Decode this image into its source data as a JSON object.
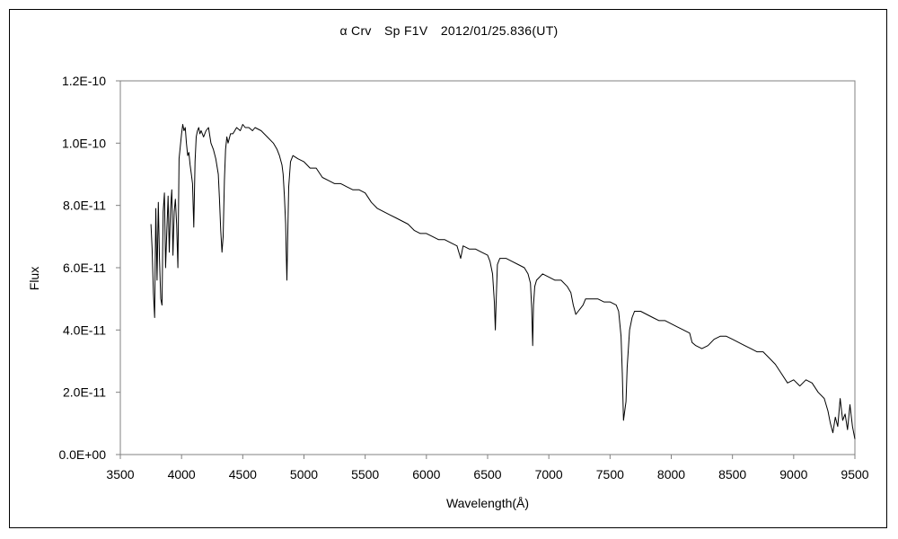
{
  "chart_data": {
    "type": "line",
    "title": "α Crv　Sp F1V　2012/01/25.836(UT)",
    "xlabel": "Wavelength(Å)",
    "ylabel": "Flux",
    "xlim": [
      3500,
      9500
    ],
    "ylim": [
      0,
      1.2e-10
    ],
    "x_ticks": [
      3500,
      4000,
      4500,
      5000,
      5500,
      6000,
      6500,
      7000,
      7500,
      8000,
      8500,
      9000,
      9500
    ],
    "x_tick_labels": [
      "3500",
      "4000",
      "4500",
      "5000",
      "5500",
      "6000",
      "6500",
      "7000",
      "7500",
      "8000",
      "8500",
      "9000",
      "9500"
    ],
    "y_ticks": [
      0,
      2e-11,
      4e-11,
      6e-11,
      8e-11,
      1e-10,
      1.2e-10
    ],
    "y_tick_labels": [
      "0.0E+00",
      "2.0E-11",
      "4.0E-11",
      "6.0E-11",
      "8.0E-11",
      "1.0E-10",
      "1.2E-10"
    ],
    "grid": false,
    "line_color": "#000000",
    "series": [
      {
        "x": [
          3750,
          3760,
          3770,
          3780,
          3790,
          3800,
          3810,
          3820,
          3830,
          3840,
          3850,
          3860,
          3870,
          3880,
          3890,
          3900,
          3910,
          3920,
          3930,
          3940,
          3950,
          3960,
          3970,
          3980,
          3990,
          4000,
          4010,
          4020,
          4030,
          4040,
          4050,
          4060,
          4070,
          4080,
          4090,
          4100,
          4110,
          4120,
          4130,
          4140,
          4150,
          4160,
          4180,
          4200,
          4220,
          4240,
          4260,
          4280,
          4300,
          4310,
          4320,
          4330,
          4340,
          4350,
          4360,
          4370,
          4380,
          4400,
          4420,
          4450,
          4480,
          4500,
          4520,
          4550,
          4580,
          4600,
          4650,
          4700,
          4750,
          4780,
          4800,
          4820,
          4830,
          4840,
          4850,
          4855,
          4861,
          4867,
          4875,
          4890,
          4910,
          4950,
          5000,
          5050,
          5100,
          5150,
          5200,
          5250,
          5300,
          5350,
          5400,
          5450,
          5500,
          5550,
          5600,
          5650,
          5700,
          5750,
          5800,
          5850,
          5900,
          5950,
          6000,
          6050,
          6100,
          6150,
          6200,
          6250,
          6280,
          6300,
          6350,
          6400,
          6450,
          6500,
          6520,
          6540,
          6555,
          6563,
          6570,
          6580,
          6600,
          6650,
          6700,
          6750,
          6800,
          6830,
          6850,
          6860,
          6868,
          6875,
          6885,
          6900,
          6950,
          7000,
          7050,
          7100,
          7150,
          7180,
          7200,
          7220,
          7240,
          7260,
          7280,
          7300,
          7350,
          7400,
          7450,
          7500,
          7550,
          7570,
          7590,
          7600,
          7610,
          7620,
          7630,
          7640,
          7660,
          7680,
          7700,
          7750,
          7800,
          7850,
          7900,
          7950,
          8000,
          8050,
          8100,
          8150,
          8170,
          8200,
          8250,
          8300,
          8350,
          8400,
          8450,
          8500,
          8550,
          8600,
          8650,
          8700,
          8750,
          8800,
          8850,
          8900,
          8950,
          9000,
          9050,
          9100,
          9150,
          9200,
          9250,
          9280,
          9300,
          9320,
          9340,
          9360,
          9380,
          9400,
          9420,
          9440,
          9460,
          9480,
          9500
        ],
        "y": [
          7.4e-11,
          6.6e-11,
          5.2e-11,
          4.4e-11,
          7.9e-11,
          5.6e-11,
          8.1e-11,
          6.3e-11,
          5e-11,
          4.8e-11,
          7.8e-11,
          8.4e-11,
          6e-11,
          7.2e-11,
          8.3e-11,
          6.5e-11,
          7.9e-11,
          8.5e-11,
          6.4e-11,
          7.8e-11,
          8.2e-11,
          7.4e-11,
          6e-11,
          9.5e-11,
          9.9e-11,
          1.03e-10,
          1.06e-10,
          1.04e-10,
          1.05e-10,
          1e-10,
          9.6e-11,
          9.7e-11,
          9.3e-11,
          9e-11,
          8.7e-11,
          7.3e-11,
          9.4e-11,
          1.02e-10,
          1.04e-10,
          1.05e-10,
          1.03e-10,
          1.04e-10,
          1.02e-10,
          1.04e-10,
          1.05e-10,
          1e-10,
          9.8e-11,
          9.5e-11,
          9e-11,
          8.2e-11,
          7.2e-11,
          6.5e-11,
          7e-11,
          8.8e-11,
          9.8e-11,
          1.02e-10,
          1e-10,
          1.03e-10,
          1.03e-10,
          1.05e-10,
          1.04e-10,
          1.06e-10,
          1.05e-10,
          1.05e-10,
          1.04e-10,
          1.05e-10,
          1.04e-10,
          1.02e-10,
          1e-10,
          9.8e-11,
          9.6e-11,
          9.3e-11,
          9e-11,
          8.3e-11,
          7.4e-11,
          6.5e-11,
          5.6e-11,
          7e-11,
          8.6e-11,
          9.4e-11,
          9.6e-11,
          9.5e-11,
          9.4e-11,
          9.2e-11,
          9.2e-11,
          8.9e-11,
          8.8e-11,
          8.7e-11,
          8.7e-11,
          8.6e-11,
          8.5e-11,
          8.5e-11,
          8.4e-11,
          8.1e-11,
          7.9e-11,
          7.8e-11,
          7.7e-11,
          7.6e-11,
          7.5e-11,
          7.4e-11,
          7.2e-11,
          7.1e-11,
          7.1e-11,
          7e-11,
          6.9e-11,
          6.9e-11,
          6.8e-11,
          6.7e-11,
          6.3e-11,
          6.7e-11,
          6.6e-11,
          6.6e-11,
          6.5e-11,
          6.4e-11,
          6.2e-11,
          5.8e-11,
          4.9e-11,
          4e-11,
          4.9e-11,
          6.1e-11,
          6.3e-11,
          6.3e-11,
          6.2e-11,
          6.1e-11,
          6e-11,
          5.8e-11,
          5.5e-11,
          4.7e-11,
          3.5e-11,
          4.8e-11,
          5.4e-11,
          5.6e-11,
          5.8e-11,
          5.7e-11,
          5.6e-11,
          5.6e-11,
          5.4e-11,
          5.2e-11,
          4.8e-11,
          4.5e-11,
          4.6e-11,
          4.7e-11,
          4.8e-11,
          5e-11,
          5e-11,
          5e-11,
          4.9e-11,
          4.9e-11,
          4.8e-11,
          4.6e-11,
          3.8e-11,
          2.6e-11,
          1.1e-11,
          1.4e-11,
          1.7e-11,
          2.8e-11,
          4e-11,
          4.4e-11,
          4.6e-11,
          4.6e-11,
          4.5e-11,
          4.4e-11,
          4.3e-11,
          4.3e-11,
          4.2e-11,
          4.1e-11,
          4e-11,
          3.9e-11,
          3.6e-11,
          3.5e-11,
          3.4e-11,
          3.5e-11,
          3.7e-11,
          3.8e-11,
          3.8e-11,
          3.7e-11,
          3.6e-11,
          3.5e-11,
          3.4e-11,
          3.3e-11,
          3.3e-11,
          3.1e-11,
          2.9e-11,
          2.6e-11,
          2.3e-11,
          2.4e-11,
          2.2e-11,
          2.4e-11,
          2.3e-11,
          2e-11,
          1.8e-11,
          1.4e-11,
          1e-11,
          7e-12,
          1.2e-11,
          9e-12,
          1.8e-11,
          1.1e-11,
          1.3e-11,
          8e-12,
          1.6e-11,
          9e-12,
          5e-12
        ]
      }
    ]
  }
}
